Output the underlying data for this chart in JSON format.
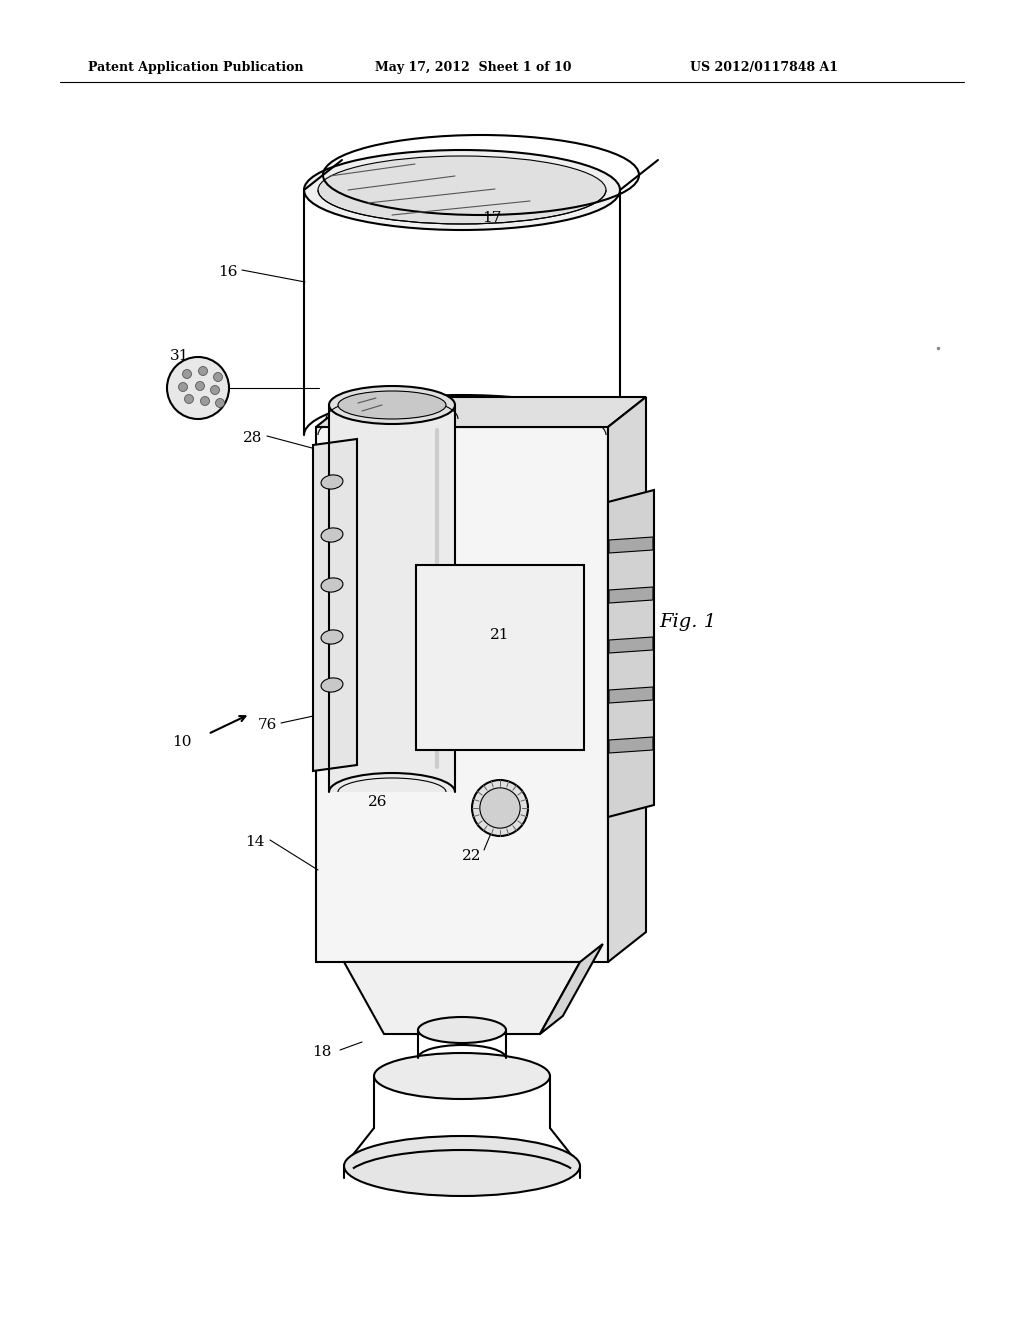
{
  "header_left": "Patent Application Publication",
  "header_mid": "May 17, 2012  Sheet 1 of 10",
  "header_right": "US 2012/0117848 A1",
  "fig_label": "Fig. 1",
  "bg_color": "#ffffff",
  "line_color": "#000000",
  "line_width": 1.5,
  "thin_line": 0.8
}
